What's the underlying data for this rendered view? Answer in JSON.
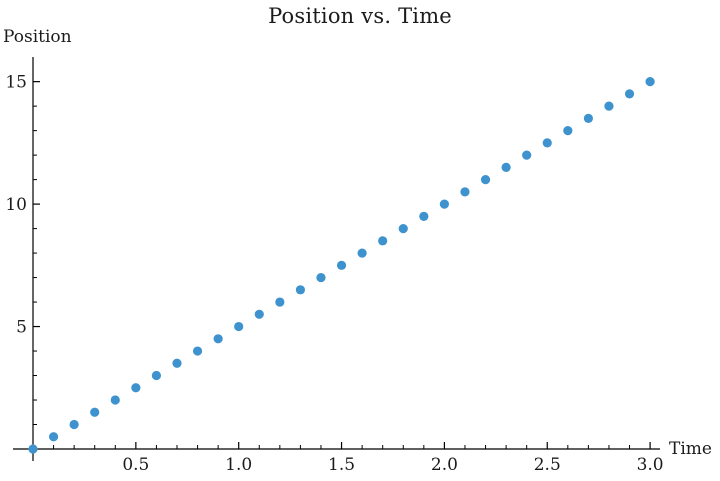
{
  "chart_data": {
    "type": "scatter",
    "title": "Position vs. Time",
    "xlabel": "Time",
    "ylabel": "Position",
    "x": [
      0.0,
      0.1,
      0.2,
      0.3,
      0.4,
      0.5,
      0.6,
      0.7,
      0.8,
      0.9,
      1.0,
      1.1,
      1.2,
      1.3,
      1.4,
      1.5,
      1.6,
      1.7,
      1.8,
      1.9,
      2.0,
      2.1,
      2.2,
      2.3,
      2.4,
      2.5,
      2.6,
      2.7,
      2.8,
      2.9,
      3.0
    ],
    "y": [
      0.0,
      0.5,
      1.0,
      1.5,
      2.0,
      2.5,
      3.0,
      3.5,
      4.0,
      4.5,
      5.0,
      5.5,
      6.0,
      6.5,
      7.0,
      7.5,
      8.0,
      8.5,
      9.0,
      9.5,
      10.0,
      10.5,
      11.0,
      11.5,
      12.0,
      12.5,
      13.0,
      13.5,
      14.0,
      14.5,
      15.0
    ],
    "xlim": [
      0,
      3.0
    ],
    "ylim": [
      0,
      15
    ],
    "x_major_ticks": [
      0.5,
      1.0,
      1.5,
      2.0,
      2.5,
      3.0
    ],
    "x_tick_labels": [
      "0.5",
      "1.0",
      "1.5",
      "2.0",
      "2.5",
      "3.0"
    ],
    "x_minor_step": 0.1,
    "y_major_ticks": [
      5,
      10,
      15
    ],
    "y_tick_labels": [
      "5",
      "10",
      "15"
    ],
    "y_minor_step": 1,
    "grid": false,
    "legend": "none",
    "point_color": "#3e93cf",
    "axis_color": "#000000",
    "text_color": "#1b1b1b"
  }
}
